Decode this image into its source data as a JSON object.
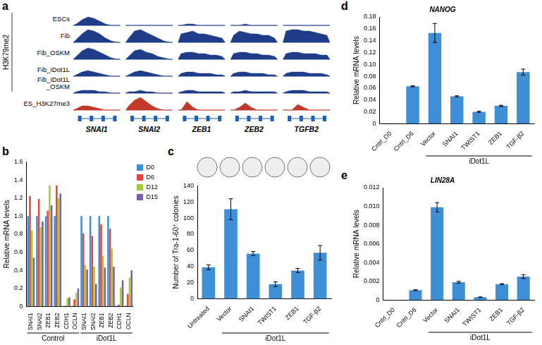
{
  "chart_data": [
    {
      "panel": "b",
      "type": "bar",
      "ylabel": "Relative mRNA levels",
      "categories": [
        "SNAI1",
        "SNAI2",
        "ZEB1",
        "ZEB2",
        "CDH1",
        "OCLN",
        "SNAI1",
        "SNAI2",
        "ZEB1",
        "ZEB2",
        "CDH1",
        "OCLN"
      ],
      "groups": [
        "Control",
        "iDot1L"
      ],
      "series": [
        {
          "name": "D0",
          "color": "#3f8fd6",
          "values": [
            1.0,
            1.0,
            1.0,
            1.0,
            0.005,
            0.01,
            1.0,
            1.0,
            1.0,
            1.0,
            0.01,
            0.01
          ]
        },
        {
          "name": "D6",
          "color": "#e5443a",
          "values": [
            1.22,
            1.19,
            1.06,
            1.34,
            0.01,
            0.08,
            0.81,
            0.78,
            0.91,
            0.86,
            0.02,
            0.14
          ]
        },
        {
          "name": "D12",
          "color": "#a3cc3a",
          "values": [
            0.84,
            0.88,
            1.34,
            1.2,
            0.09,
            0.15,
            0.46,
            0.44,
            0.56,
            0.64,
            0.21,
            0.32
          ]
        },
        {
          "name": "D15",
          "color": "#7760a8",
          "values": [
            0.54,
            0.94,
            1.12,
            1.25,
            0.1,
            0.2,
            0.41,
            0.25,
            0.43,
            0.44,
            0.29,
            0.4
          ]
        }
      ],
      "ylim": [
        0,
        1.6
      ],
      "yticks": [
        0,
        0.2,
        0.4,
        0.6,
        0.8,
        {
          "value": 1,
          "label": "1.0"
        },
        1.2,
        1.4,
        1.6
      ],
      "legend": "right",
      "grid": false
    },
    {
      "panel": "c",
      "type": "bar",
      "ylabel": "Number of Tra-1-60⁺ colonies",
      "categories": [
        "Untreated",
        "Vector",
        "SNAI1",
        "TWIST1",
        "ZEB1",
        "TGF-β2"
      ],
      "values": [
        39,
        111,
        56,
        18,
        35,
        57
      ],
      "errors": [
        3,
        13,
        2.5,
        3,
        2.5,
        9
      ],
      "color": "#3f8fd6",
      "ylim": [
        0,
        140
      ],
      "yticks": [
        0,
        20,
        40,
        60,
        80,
        100,
        120,
        140
      ],
      "bracket": {
        "label": "iDot1L",
        "from": "Vector",
        "to": "TGF-β2"
      },
      "grid": false
    },
    {
      "panel": "d",
      "type": "bar",
      "title": "NANOG",
      "ylabel": "Relative mRNA levels",
      "categories": [
        "Cntrl_D0",
        "Cntrl_D6",
        "Vector",
        "SNAI1",
        "TWIST1",
        "ZEB1",
        "TGF-β2"
      ],
      "values": [
        0.0005,
        0.063,
        0.153,
        0.046,
        0.02,
        0.03,
        0.087
      ],
      "errors": [
        0,
        0.001,
        0.016,
        0.001,
        0.001,
        0.001,
        0.005
      ],
      "color": "#3f8fd6",
      "ylim": [
        0,
        0.18
      ],
      "yticks": [
        0,
        0.02,
        0.04,
        0.06,
        0.08,
        {
          "value": 0.1,
          "label": "0.10"
        },
        0.12,
        0.14,
        0.16,
        0.18
      ],
      "bracket": {
        "label": "iDot1L",
        "from": "Vector",
        "to": "TGF-β2"
      },
      "grid": false
    },
    {
      "panel": "e",
      "type": "bar",
      "title": "LIN28A",
      "ylabel": "Relative mRNA levels",
      "categories": [
        "Cntrl_D0",
        "Cntrl_D6",
        "Vector",
        "SNAI1",
        "TWIST1",
        "ZEB1",
        "TGF-β2"
      ],
      "values": [
        2e-05,
        0.00105,
        0.0099,
        0.0019,
        0.0003,
        0.0017,
        0.0025
      ],
      "errors": [
        0,
        5e-05,
        0.0005,
        0.0001,
        3e-05,
        5e-05,
        0.0002
      ],
      "color": "#3f8fd6",
      "ylim": [
        0,
        0.012
      ],
      "yticks": [
        0,
        0.002,
        0.004,
        0.006,
        0.008,
        {
          "value": 0.01,
          "label": "0.010"
        },
        0.012
      ],
      "bracket": {
        "label": "iDot1L",
        "from": "Vector",
        "to": "TGF-β2"
      },
      "grid": false
    }
  ],
  "tracks_a": {
    "panel": "a",
    "group_label": "H3K79me2",
    "genes": [
      "SNAI1",
      "SNAI2",
      "ZEB1",
      "ZEB2",
      "TGFB2"
    ],
    "tracks": [
      {
        "name": "ESCs",
        "color": "#1f3c88",
        "in_group": true,
        "signal": [
          [
            0.1,
            0.4,
            0.6,
            0.5,
            0.3,
            0.1,
            0,
            0
          ],
          [
            0,
            0,
            0,
            0,
            0,
            0,
            0,
            0
          ],
          [
            0,
            0.1,
            0.1,
            0,
            0,
            0,
            0,
            0
          ],
          [
            0,
            0,
            0.1,
            0,
            0,
            0,
            0,
            0
          ],
          [
            0,
            0,
            0,
            0,
            0,
            0,
            0,
            0
          ]
        ]
      },
      {
        "name": "Fib",
        "color": "#1f3c88",
        "in_group": true,
        "signal": [
          [
            0.2,
            0.6,
            0.9,
            0.8,
            0.6,
            0.3,
            0.1,
            0
          ],
          [
            0.3,
            0.8,
            0.9,
            0.7,
            0.5,
            0.3,
            0.1,
            0
          ],
          [
            0.6,
            0.7,
            0.8,
            0.6,
            0.6,
            0.5,
            0.4,
            0.3
          ],
          [
            0.5,
            0.8,
            0.7,
            0.6,
            0.6,
            0.5,
            0.5,
            0.3
          ],
          [
            0.8,
            0.9,
            0.9,
            0.8,
            0.8,
            0.7,
            0.6,
            0.5
          ]
        ]
      },
      {
        "name": "Fib_OSKM",
        "color": "#1f3c88",
        "in_group": true,
        "signal": [
          [
            0.2,
            0.6,
            0.8,
            0.7,
            0.5,
            0.3,
            0.1,
            0
          ],
          [
            0.2,
            0.6,
            0.7,
            0.5,
            0.4,
            0.2,
            0.1,
            0
          ],
          [
            0.4,
            0.5,
            0.5,
            0.4,
            0.4,
            0.3,
            0.3,
            0.2
          ],
          [
            0.4,
            0.5,
            0.5,
            0.4,
            0.4,
            0.3,
            0.3,
            0.2
          ],
          [
            0.4,
            0.5,
            0.5,
            0.4,
            0.4,
            0.4,
            0.3,
            0.3
          ]
        ]
      },
      {
        "name": "Fib_iDot1L",
        "color": "#1f3c88",
        "in_group": true,
        "signal": [
          [
            0.1,
            0.3,
            0.4,
            0.3,
            0.2,
            0.1,
            0,
            0
          ],
          [
            0.1,
            0.3,
            0.4,
            0.3,
            0.2,
            0.1,
            0,
            0
          ],
          [
            0.2,
            0.3,
            0.3,
            0.2,
            0.2,
            0.2,
            0.1,
            0.1
          ],
          [
            0.2,
            0.3,
            0.3,
            0.2,
            0.2,
            0.2,
            0.1,
            0.1
          ],
          [
            0.2,
            0.3,
            0.3,
            0.3,
            0.2,
            0.2,
            0.2,
            0.1
          ]
        ]
      },
      {
        "name": "Fib_iDot1L_OSKM",
        "color": "#1f3c88",
        "in_group": true,
        "signal": [
          [
            0.1,
            0.2,
            0.2,
            0.2,
            0.1,
            0.1,
            0,
            0
          ],
          [
            0.1,
            0.1,
            0.2,
            0.1,
            0.1,
            0,
            0,
            0
          ],
          [
            0.1,
            0.2,
            0.2,
            0.1,
            0.1,
            0.1,
            0.1,
            0.1
          ],
          [
            0.1,
            0.1,
            0.2,
            0.1,
            0.1,
            0.1,
            0.1,
            0.1
          ],
          [
            0.1,
            0.2,
            0.2,
            0.2,
            0.1,
            0.1,
            0.1,
            0.1
          ]
        ]
      },
      {
        "name": "ES_H3K27me3",
        "color": "#c0392b",
        "in_group": false,
        "signal": [
          [
            0.1,
            0.3,
            0.3,
            0.2,
            0.1,
            0,
            0,
            0
          ],
          [
            0.3,
            0.7,
            0.9,
            0.6,
            0.3,
            0.1,
            0,
            0
          ],
          [
            0,
            0.6,
            0.2,
            0,
            0,
            0,
            0,
            0
          ],
          [
            0,
            0.2,
            0.5,
            0.2,
            0,
            0,
            0,
            0
          ],
          [
            0,
            0,
            0.4,
            0.2,
            0,
            0,
            0,
            0
          ]
        ]
      }
    ]
  }
}
